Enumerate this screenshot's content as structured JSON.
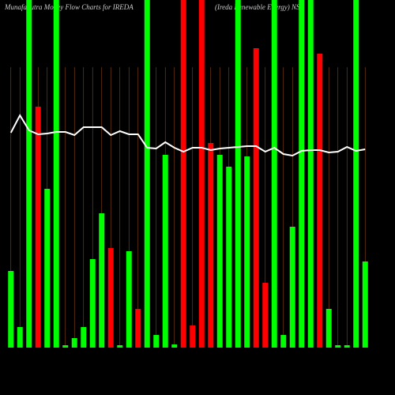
{
  "chart_data": {
    "type": "bar",
    "title": "MunafaSutra Money Flow Charts for IREDA",
    "subtitle": "(Ireda Renewable Energy) NSE",
    "categories": [
      null,
      null,
      null,
      null,
      null,
      null,
      null,
      null,
      null,
      null,
      null,
      null,
      null,
      null,
      null,
      null,
      null,
      null,
      null,
      null,
      null,
      null,
      null,
      null,
      null,
      null,
      null,
      null,
      null,
      null,
      null,
      null,
      null,
      null,
      null,
      null,
      null,
      null,
      null,
      null
    ],
    "series": [
      {
        "values": [
          97,
          26,
          440,
          305,
          201,
          440,
          3,
          12,
          26,
          112,
          170,
          126,
          3,
          122,
          49,
          440,
          16,
          244,
          4,
          440,
          28,
          440,
          259,
          244,
          229,
          440,
          242,
          379,
          82,
          440,
          16,
          153,
          440,
          440,
          372,
          49,
          3,
          3,
          440,
          109
        ],
        "colors": [
          "#00ff00",
          "#00ff00",
          "#00ff00",
          "#ff0000",
          "#00ff00",
          "#00ff00",
          "#00ff00",
          "#00ff00",
          "#00ff00",
          "#00ff00",
          "#00ff00",
          "#ff0000",
          "#00ff00",
          "#00ff00",
          "#ff0000",
          "#00ff00",
          "#00ff00",
          "#00ff00",
          "#00ff00",
          "#ff0000",
          "#ff0000",
          "#ff0000",
          "#ff0000",
          "#00ff00",
          "#00ff00",
          "#00ff00",
          "#00ff00",
          "#ff0000",
          "#ff0000",
          "#00ff00",
          "#00ff00",
          "#00ff00",
          "#00ff00",
          "#00ff00",
          "#ff0000",
          "#00ff00",
          "#00ff00",
          "#00ff00",
          "#00ff00",
          "#00ff00"
        ]
      },
      {
        "type": "line",
        "color": "#ffffff",
        "values": [
          272,
          294,
          275,
          270,
          271,
          273,
          273,
          269,
          279,
          279,
          279,
          269,
          274,
          270,
          270,
          253,
          252,
          260,
          253,
          248,
          253,
          253,
          250,
          252,
          253,
          254,
          255,
          255,
          248,
          253,
          245,
          243,
          249,
          250,
          250,
          247,
          248,
          254,
          249,
          251
        ]
      }
    ],
    "ylim": [
      0,
      440
    ]
  }
}
